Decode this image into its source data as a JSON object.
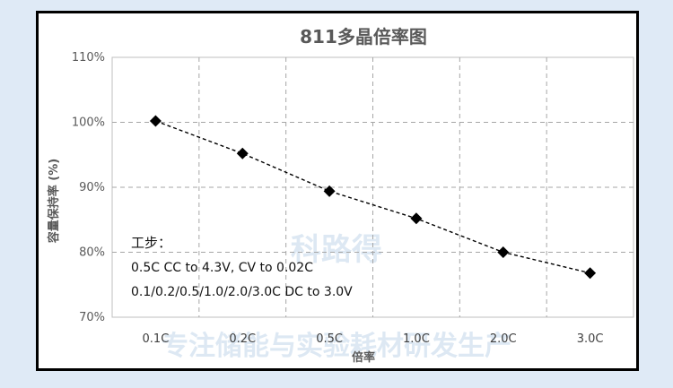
{
  "chart_data": {
    "type": "scatter",
    "title": "811多晶倍率图",
    "xlabel": "倍率",
    "ylabel": "容量保持率 (%)",
    "categories": [
      "0.1C",
      "0.2C",
      "0.5C",
      "1.0C",
      "2.0C",
      "3.0C"
    ],
    "values": [
      100.2,
      95.2,
      89.4,
      85.2,
      80.0,
      76.8
    ],
    "ylim": [
      70,
      110
    ],
    "yticks": [
      70,
      80,
      90,
      100,
      110
    ],
    "ytick_labels": [
      "70%",
      "80%",
      "90%",
      "100%",
      "110%"
    ],
    "grid": true,
    "marker": "diamond",
    "trendline": "dashed",
    "marker_color": "#000000",
    "grid_color": "#a6a6a6",
    "annotation": {
      "heading": "工步：",
      "lines": [
        "0.5C CC to 4.3V, CV to 0.02C",
        "0.1/0.2/0.5/1.0/2.0/3.0C DC to 3.0V"
      ]
    }
  },
  "watermark": {
    "logo_text": "科路得",
    "tagline": "专注储能与实验耗材研发生产"
  }
}
